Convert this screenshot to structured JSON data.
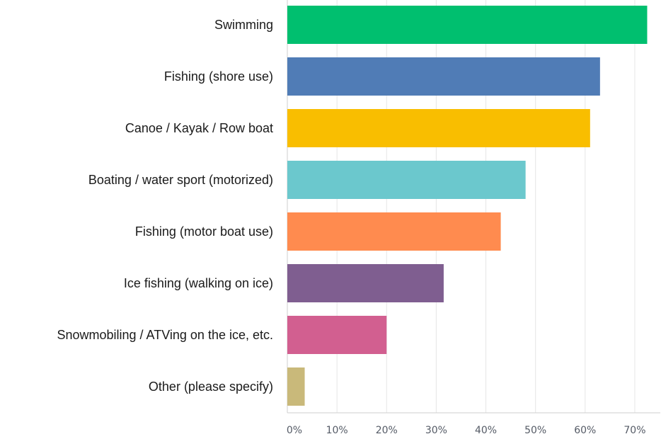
{
  "chart_data": {
    "type": "bar",
    "orientation": "horizontal",
    "categories": [
      "Swimming",
      "Fishing (shore use)",
      "Canoe / Kayak / Row boat",
      "Boating / water sport (motorized)",
      "Fishing (motor boat use)",
      "Ice fishing (walking on ice)",
      "Snowmobiling / ATVing on the ice, etc.",
      "Other (please specify)"
    ],
    "values": [
      72.5,
      63.0,
      61.0,
      48.0,
      43.0,
      31.5,
      20.0,
      3.5
    ],
    "colors": [
      "#00bf6f",
      "#507cb6",
      "#f9be00",
      "#6bc8cd",
      "#ff8b4f",
      "#7f5e90",
      "#d25f90",
      "#c9b97a"
    ],
    "xlim": [
      0,
      74
    ],
    "xticks": [
      0,
      10,
      20,
      30,
      40,
      50,
      60,
      70
    ],
    "xtick_labels": [
      "0%",
      "10%",
      "20%",
      "30%",
      "40%",
      "50%",
      "60%",
      "70%"
    ],
    "grid": "vertical",
    "title": "",
    "xlabel": "",
    "ylabel": ""
  }
}
